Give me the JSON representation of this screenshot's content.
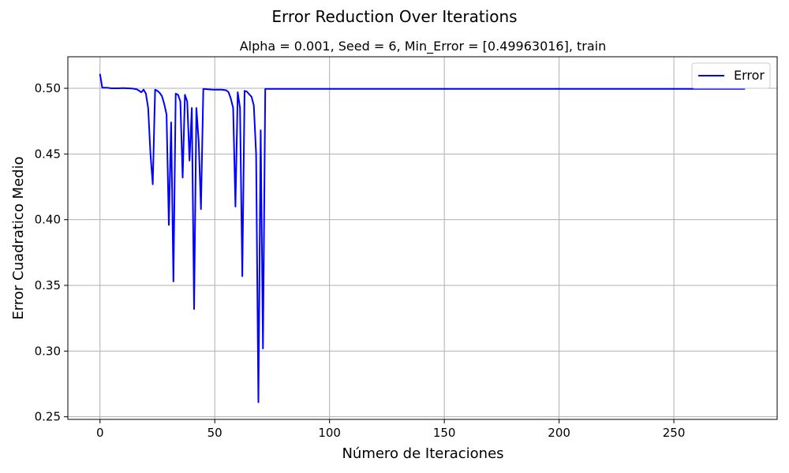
{
  "chart_data": {
    "type": "line",
    "suptitle": "Error Reduction Over Iterations",
    "title": "Alpha = 0.001, Seed = 6, Min_Error = [0.49963016], train",
    "xlabel": "Número de Iteraciones",
    "ylabel": "Error Cuadratico Medio",
    "xlim": [
      -14,
      295
    ],
    "ylim": [
      0.248,
      0.524
    ],
    "xticks": [
      0,
      50,
      100,
      150,
      200,
      250
    ],
    "xtick_labels": [
      "0",
      "50",
      "100",
      "150",
      "200",
      "250"
    ],
    "yticks": [
      0.25,
      0.3,
      0.35,
      0.4,
      0.45,
      0.5
    ],
    "ytick_labels": [
      "0.25",
      "0.30",
      "0.35",
      "0.40",
      "0.45",
      "0.50"
    ],
    "grid": true,
    "legend": {
      "placement": "top-right",
      "entries": [
        "Error"
      ]
    },
    "series": [
      {
        "name": "Error",
        "color": "#0000ff",
        "x": [
          0,
          1,
          3,
          5,
          8,
          10,
          12,
          14,
          16,
          18,
          19,
          20,
          21,
          22,
          23,
          24,
          25,
          26,
          27,
          28,
          29,
          30,
          31,
          32,
          33,
          34,
          35,
          36,
          37,
          38,
          39,
          40,
          41,
          42,
          43,
          44,
          45,
          47,
          49,
          51,
          53,
          55,
          56,
          57,
          58,
          59,
          60,
          61,
          62,
          63,
          64,
          65,
          66,
          67,
          68,
          69,
          70,
          71,
          72,
          73,
          75,
          100,
          150,
          200,
          250,
          281
        ],
        "y": [
          0.511,
          0.5005,
          0.5005,
          0.5,
          0.5,
          0.5002,
          0.5,
          0.4998,
          0.4993,
          0.497,
          0.499,
          0.496,
          0.485,
          0.45,
          0.427,
          0.499,
          0.498,
          0.4965,
          0.494,
          0.488,
          0.48,
          0.396,
          0.474,
          0.353,
          0.496,
          0.495,
          0.49,
          0.432,
          0.495,
          0.49,
          0.445,
          0.485,
          0.332,
          0.485,
          0.46,
          0.408,
          0.4995,
          0.4993,
          0.499,
          0.499,
          0.499,
          0.4985,
          0.497,
          0.492,
          0.485,
          0.41,
          0.497,
          0.485,
          0.357,
          0.498,
          0.4975,
          0.4955,
          0.4935,
          0.487,
          0.45,
          0.261,
          0.468,
          0.302,
          0.4996,
          0.4996,
          0.4996,
          0.4996,
          0.4996,
          0.4996,
          0.4996,
          0.4996
        ]
      }
    ]
  }
}
